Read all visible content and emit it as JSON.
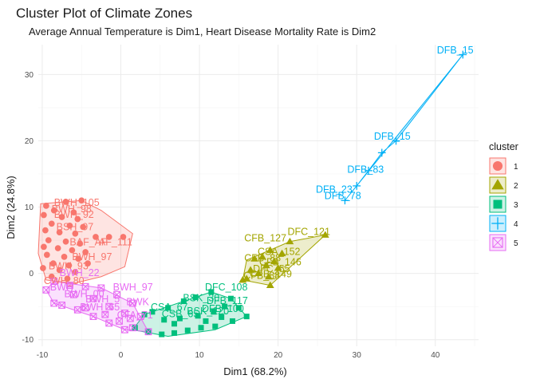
{
  "chart_data": {
    "type": "scatter",
    "title": "Cluster Plot of Climate Zones",
    "subtitle": "Average Annual Temperature is Dim1, Heart Disease Mortality Rate is Dim2",
    "xlabel": "Dim1 (68.2%)",
    "ylabel": "Dim2 (24.8%)",
    "xlim": [
      -10.5,
      45.5
    ],
    "ylim": [
      -11,
      34.5
    ],
    "xticks": [
      -10,
      0,
      10,
      20,
      30,
      40
    ],
    "yticks": [
      -10,
      0,
      10,
      20,
      30
    ],
    "grid": true,
    "legend": {
      "title": "cluster",
      "position": "right"
    },
    "series": [
      {
        "name": "1",
        "color": "#F8766D",
        "marker": "circle",
        "hull": [
          [
            -10.2,
            10.5
          ],
          [
            -5,
            11
          ],
          [
            -2.5,
            9.5
          ],
          [
            1.5,
            6
          ],
          [
            0.5,
            1
          ],
          [
            -2.5,
            -0.5
          ],
          [
            -6,
            -1.5
          ],
          [
            -9.5,
            -1
          ],
          [
            -10.5,
            3
          ]
        ],
        "points": [
          [
            -9.5,
            10.2
          ],
          [
            -7,
            10.8
          ],
          [
            -5,
            11
          ],
          [
            -8.5,
            9.5
          ],
          [
            -6,
            9.2
          ],
          [
            -9.8,
            8.8
          ],
          [
            -7.5,
            8.5
          ],
          [
            -5.5,
            8.2
          ],
          [
            -8.8,
            7.5
          ],
          [
            -6.5,
            7.2
          ],
          [
            -4.8,
            7
          ],
          [
            -9.6,
            6.5
          ],
          [
            -7.8,
            6.2
          ],
          [
            -5.8,
            6
          ],
          [
            -3.2,
            5.5
          ],
          [
            -1.5,
            5.5
          ],
          [
            0.3,
            5.5
          ],
          [
            -9.2,
            5
          ],
          [
            -7,
            4.8
          ],
          [
            -5.2,
            4.5
          ],
          [
            -9.8,
            4
          ],
          [
            -8,
            3.8
          ],
          [
            -6.2,
            3.5
          ],
          [
            -4.5,
            3.2
          ],
          [
            -9.4,
            2.8
          ],
          [
            -7.2,
            2.5
          ],
          [
            -5.4,
            2.2
          ],
          [
            -8.6,
            1.5
          ],
          [
            -6.6,
            1.2
          ],
          [
            -4.2,
            1.5
          ],
          [
            -9.9,
            0.8
          ],
          [
            -7.8,
            0.5
          ],
          [
            -5.8,
            0.2
          ],
          [
            -8.8,
            -0.5
          ],
          [
            -6.8,
            -0.8
          ]
        ],
        "labels": [
          {
            "text": "BWH_105",
            "x": -8.5,
            "y": 10.2
          },
          {
            "text": "BWH_98",
            "x": -8.8,
            "y": 9.2
          },
          {
            "text": "BWH_92",
            "x": -8.5,
            "y": 8.4
          },
          {
            "text": "BSH_97",
            "x": -8.2,
            "y": 6.5
          },
          {
            "text": "BAF_AF",
            "x": -6.5,
            "y": 4.2
          },
          {
            "text": "AF_111",
            "x": -2.8,
            "y": 4.2
          },
          {
            "text": "BWH_97",
            "x": -6.2,
            "y": 2.0
          },
          {
            "text": "CWH_80",
            "x": -9.8,
            "y": -1.6
          },
          {
            "text": "BWH_93",
            "x": -9.2,
            "y": 0.6
          }
        ]
      },
      {
        "name": "2",
        "color": "#A3A500",
        "marker": "triangle",
        "hull": [
          [
            15.5,
            -1
          ],
          [
            19,
            -1.8
          ],
          [
            26,
            5.8
          ],
          [
            21.5,
            4.8
          ],
          [
            16,
            2
          ]
        ],
        "points": [
          [
            26,
            5.8
          ],
          [
            21.5,
            4.8
          ],
          [
            19,
            3.5
          ],
          [
            20.5,
            3
          ],
          [
            18,
            2.5
          ],
          [
            17,
            2.2
          ],
          [
            19.5,
            1.8
          ],
          [
            18.5,
            1.2
          ],
          [
            20,
            0.8
          ],
          [
            16.5,
            0.5
          ],
          [
            17.5,
            0
          ],
          [
            18.8,
            -0.5
          ],
          [
            16,
            -0.8
          ],
          [
            19,
            -1.8
          ],
          [
            15.5,
            -1
          ]
        ],
        "labels": [
          {
            "text": "DFC_121",
            "x": 21.2,
            "y": 5.8
          },
          {
            "text": "CFB_127",
            "x": 15.7,
            "y": 4.8
          },
          {
            "text": "CSA_152",
            "x": 17.4,
            "y": 2.8
          },
          {
            "text": "CFB_88",
            "x": 15.7,
            "y": 1.8
          },
          {
            "text": "CFB_146",
            "x": 17.6,
            "y": 1.2
          },
          {
            "text": "DFC_55",
            "x": 16.8,
            "y": 0.2
          },
          {
            "text": "CFB_149",
            "x": 16.4,
            "y": -0.6
          },
          {
            "text": "CFB_88",
            "x": 15.6,
            "y": -0.8
          }
        ]
      },
      {
        "name": "3",
        "color": "#00BF7D",
        "marker": "square",
        "hull": [
          [
            1.5,
            -8.5
          ],
          [
            6,
            -9.5
          ],
          [
            12,
            -8.5
          ],
          [
            16,
            -6.5
          ],
          [
            14,
            -3.8
          ],
          [
            11.5,
            -2.8
          ],
          [
            8,
            -4.2
          ],
          [
            3,
            -6.2
          ]
        ],
        "points": [
          [
            1.8,
            -8.2
          ],
          [
            3.5,
            -8.8
          ],
          [
            5.2,
            -9.2
          ],
          [
            6.8,
            -9.0
          ],
          [
            8.5,
            -8.6
          ],
          [
            10.2,
            -8.2
          ],
          [
            12,
            -8.0
          ],
          [
            14.2,
            -7.2
          ],
          [
            16,
            -6.5
          ],
          [
            15,
            -5.2
          ],
          [
            14,
            -3.8
          ],
          [
            11.5,
            -2.8
          ],
          [
            9.5,
            -3.6
          ],
          [
            8,
            -4.2
          ],
          [
            6,
            -5.2
          ],
          [
            4,
            -5.8
          ],
          [
            3,
            -6.2
          ],
          [
            5.5,
            -7
          ],
          [
            7.5,
            -6.8
          ],
          [
            9.8,
            -6.4
          ],
          [
            11.8,
            -5.8
          ],
          [
            13.2,
            -5
          ],
          [
            6.8,
            -7.6
          ],
          [
            10.8,
            -7.2
          ],
          [
            12.8,
            -6.6
          ]
        ],
        "labels": [
          {
            "text": "DFC_108",
            "x": 10.7,
            "y": -2.6
          },
          {
            "text": "BSK_30",
            "x": 7.9,
            "y": -4.2
          },
          {
            "text": "DFB_117",
            "x": 10.9,
            "y": -4.6
          },
          {
            "text": "CSA_67",
            "x": 3.8,
            "y": -5.6
          },
          {
            "text": "CSB_65",
            "x": 5.2,
            "y": -6.6
          },
          {
            "text": "BSK_120",
            "x": 8.4,
            "y": -6.2
          },
          {
            "text": "DFB_100",
            "x": 10.3,
            "y": -5.8
          }
        ]
      },
      {
        "name": "4",
        "color": "#00B0F6",
        "marker": "plus",
        "hull": [
          [
            28.5,
            11
          ],
          [
            43.5,
            33
          ],
          [
            35,
            20
          ],
          [
            33.2,
            18.2
          ],
          [
            31.5,
            15.5
          ],
          [
            30,
            13.2
          ]
        ],
        "points": [
          [
            43.5,
            33
          ],
          [
            35,
            20
          ],
          [
            33.2,
            18.2
          ],
          [
            31.5,
            15.5
          ],
          [
            30,
            13.2
          ],
          [
            28.5,
            11
          ]
        ],
        "labels": [
          {
            "text": "DFB_15",
            "x": 40.2,
            "y": 33.2
          },
          {
            "text": "DFB_15",
            "x": 32.2,
            "y": 20.2
          },
          {
            "text": "DFB_83",
            "x": 28.8,
            "y": 15.2
          },
          {
            "text": "DFB_23",
            "x": 24.8,
            "y": 12.2
          },
          {
            "text": "DFB_78",
            "x": 25.9,
            "y": 11.2
          }
        ]
      },
      {
        "name": "5",
        "color": "#E76BF3",
        "marker": "square-x",
        "hull": [
          [
            -8.5,
            -1.2
          ],
          [
            -2.5,
            -2.2
          ],
          [
            1.5,
            -4.5
          ],
          [
            3.5,
            -8.8
          ],
          [
            0.5,
            -8.5
          ],
          [
            -3.5,
            -6.5
          ],
          [
            -8.5,
            -4.5
          ],
          [
            -9.5,
            -2.5
          ]
        ],
        "points": [
          [
            -8.5,
            -1.2
          ],
          [
            -6.5,
            -1.8
          ],
          [
            -4.5,
            -2.0
          ],
          [
            -2.5,
            -2.2
          ],
          [
            -0.5,
            -3.2
          ],
          [
            1.5,
            -4.5
          ],
          [
            2.5,
            -6.5
          ],
          [
            3.5,
            -8.8
          ],
          [
            1.5,
            -8.2
          ],
          [
            0.5,
            -8.5
          ],
          [
            -1.5,
            -7.5
          ],
          [
            -3.5,
            -6.5
          ],
          [
            -5.5,
            -5.5
          ],
          [
            -7.5,
            -4.8
          ],
          [
            -8.5,
            -4.5
          ],
          [
            -9.5,
            -2.5
          ],
          [
            -6,
            -3.2
          ],
          [
            -3.5,
            -3.8
          ],
          [
            -1.5,
            -5
          ],
          [
            0.5,
            -6
          ],
          [
            -4.5,
            -5.2
          ],
          [
            -2,
            -6.2
          ],
          [
            -0.2,
            -7.2
          ],
          [
            1.2,
            -6.8
          ]
        ],
        "labels": [
          {
            "text": "BWH_22",
            "x": -7.8,
            "y": -0.4
          },
          {
            "text": "BWH_97",
            "x": -1.0,
            "y": -2.6
          },
          {
            "text": "BWH",
            "x": -9.0,
            "y": -2.6
          },
          {
            "text": "BWH_00",
            "x": -7.2,
            "y": -3.6
          },
          {
            "text": "BWH_5",
            "x": -4.5,
            "y": -4.4
          },
          {
            "text": "BWK",
            "x": 0.7,
            "y": -4.8
          },
          {
            "text": "BWH_65",
            "x": -5.2,
            "y": -5.6
          },
          {
            "text": "CFA_71",
            "x": -0.5,
            "y": -6.8
          }
        ]
      }
    ]
  }
}
